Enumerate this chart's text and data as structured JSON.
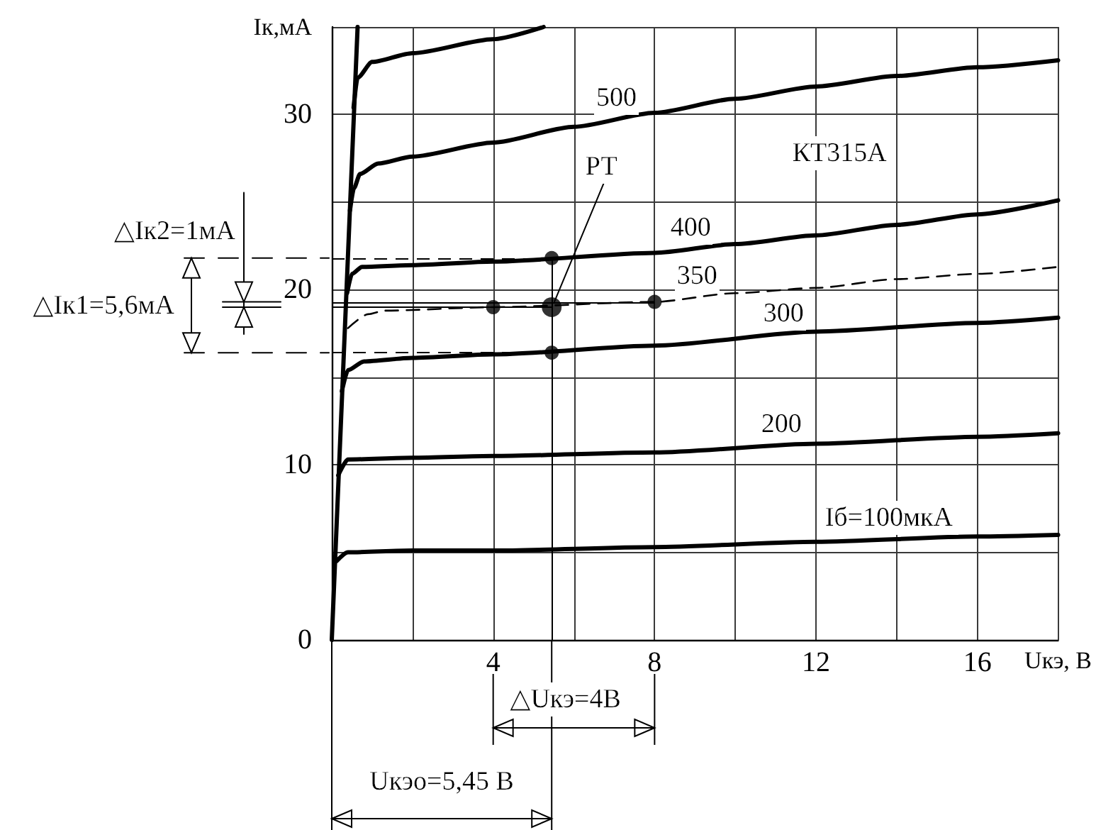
{
  "chart_data": {
    "type": "line",
    "xlabel": "Uкэ, В",
    "ylabel": "Iк,мА",
    "xlim": [
      0,
      18
    ],
    "xticks": [
      {
        "value": 0,
        "label": null
      },
      {
        "value": 2,
        "label": null
      },
      4,
      {
        "value": 6,
        "label": null
      },
      8,
      {
        "value": 10,
        "label": null
      },
      12,
      {
        "value": 14,
        "label": null
      },
      16,
      {
        "value": 18,
        "label": null
      }
    ],
    "ylim": [
      0,
      35
    ],
    "yticks": [
      0,
      {
        "value": 5,
        "label": null
      },
      10,
      {
        "value": 15,
        "label": null
      },
      20,
      {
        "value": 25,
        "label": null
      },
      30,
      {
        "value": 35,
        "label": null
      }
    ],
    "grid": true,
    "marker": "none",
    "line_style": "solid",
    "series": [
      {
        "name": "Iб=100мкА",
        "color": "#000000",
        "x": [
          0.12,
          0.4,
          2,
          4,
          8,
          12,
          16,
          18
        ],
        "values": [
          4.5,
          5.0,
          5.1,
          5.1,
          5.3,
          5.6,
          5.9,
          6.0
        ]
      },
      {
        "name": "200",
        "color": "#000000",
        "x": [
          0.16,
          0.4,
          2,
          4,
          8,
          12,
          16,
          18
        ],
        "values": [
          9.4,
          10.3,
          10.4,
          10.5,
          10.7,
          11.2,
          11.6,
          11.8
        ]
      },
      {
        "name": "300",
        "color": "#000000",
        "x": [
          0.25,
          0.4,
          0.8,
          2,
          4,
          8,
          12,
          16,
          18
        ],
        "values": [
          14.2,
          15.4,
          15.9,
          16.1,
          16.3,
          16.8,
          17.6,
          18.1,
          18.4
        ]
      },
      {
        "name": "350",
        "color": "#000000",
        "line_style": "dashed",
        "x": [
          0.4,
          0.9,
          1.3,
          4,
          8,
          10,
          12,
          14,
          16,
          18
        ],
        "values": [
          17.8,
          18.6,
          18.8,
          19.0,
          19.3,
          19.8,
          20.1,
          20.6,
          20.9,
          21.3
        ]
      },
      {
        "name": "400",
        "color": "#000000",
        "x": [
          0.38,
          0.5,
          0.75,
          2,
          4,
          8,
          10,
          12,
          14,
          16,
          18
        ],
        "values": [
          19.8,
          20.9,
          21.3,
          21.4,
          21.6,
          22.1,
          22.6,
          23.1,
          23.7,
          24.3,
          25.1
        ]
      },
      {
        "name": "500",
        "color": "#000000",
        "x": [
          0.45,
          0.55,
          0.7,
          1.15,
          2,
          4,
          6,
          8,
          10,
          12,
          14,
          16,
          18
        ],
        "values": [
          24.5,
          25.8,
          26.6,
          27.2,
          27.6,
          28.4,
          29.3,
          30.1,
          30.9,
          31.6,
          32.2,
          32.7,
          33.1
        ]
      },
      {
        "color": "#000000",
        "x": [
          0.54,
          0.64,
          1.0,
          2,
          4,
          5.25
        ],
        "values": [
          30.4,
          32.1,
          33.0,
          33.5,
          34.3,
          35.0
        ]
      },
      {
        "color": "#000000",
        "x": [
          0,
          0.64
        ],
        "values": [
          0,
          35
        ]
      },
      {
        "type": "scatter",
        "marker": "circle",
        "color": "#000000",
        "x": [
          4,
          8,
          5.45,
          5.45
        ],
        "values": [
          19.0,
          19.3,
          21.8,
          16.4
        ]
      },
      {
        "type": "scatter",
        "marker": "circle",
        "color": "#000000",
        "x": [
          5.45
        ],
        "values": [
          19.0
        ]
      }
    ],
    "ref_lines": [
      {
        "axis": "x",
        "value": 5.45,
        "label": "Uкэо=5,45 В"
      },
      {
        "axis": "y",
        "value": 21.8,
        "line_style": "dashed"
      },
      {
        "axis": "y",
        "value": 16.4,
        "line_style": "dashed"
      },
      {
        "axis": "y",
        "value": 19.3
      },
      {
        "axis": "y",
        "value": 19.0
      }
    ],
    "annotations": [
      "△Iк2=1мА",
      "△Iк1=5,6мА",
      "△Uкэ=4В",
      {
        "text": "РТ",
        "x": 5.45,
        "y": 19.0
      },
      "КТ315А"
    ]
  }
}
